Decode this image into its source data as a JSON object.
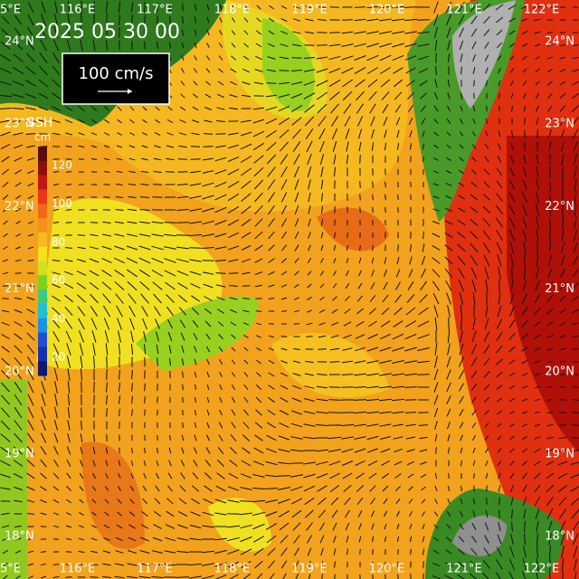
{
  "title": "2025 05 30 00",
  "scale_label": "100 cm/s",
  "legend": {
    "title": "SSH",
    "unit": "cm",
    "ticks": [
      120,
      100,
      80,
      60,
      40,
      20
    ]
  },
  "lon_labels": [
    "5°E",
    "116°E",
    "117°E",
    "118°E",
    "119°E",
    "120°E",
    "121°E",
    "122°E"
  ],
  "lat_labels": [
    "24°N",
    "23°N",
    "22°N",
    "21°N",
    "20°N",
    "19°N",
    "18°N"
  ]
}
